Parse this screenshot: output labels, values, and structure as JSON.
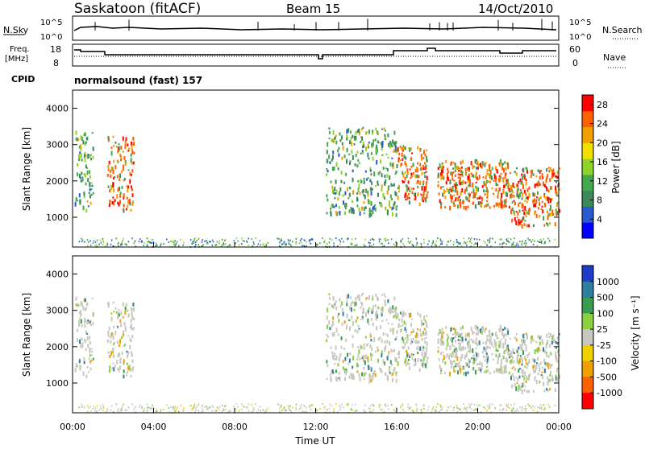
{
  "header": {
    "station": "Saskatoon (fitACF)",
    "beam": "Beam 15",
    "date": "14/Oct/2010"
  },
  "strip_labels": {
    "nsky": "N.Sky",
    "nsearch": "N.Search",
    "freq": "Freq.",
    "freq_unit": "[MHz]",
    "nave": "Nave",
    "cpid": "CPID",
    "cpid_value": "normalsound (fast) 157",
    "nsky_ticks": [
      "10^5",
      "10^0"
    ],
    "nsky_right_ticks": [
      "10^5",
      "10^0"
    ],
    "freq_ticks": [
      "18",
      "8"
    ],
    "nave_ticks": [
      "60",
      "0"
    ]
  },
  "colors": {
    "power_scale": [
      "#0000ff",
      "#2a5ad2",
      "#3b8a5a",
      "#44a84c",
      "#8fd42a",
      "#f0e000",
      "#f0a000",
      "#ff6000",
      "#ff0000"
    ],
    "velocity_scale": [
      "#1e3cc8",
      "#2e7ea0",
      "#3a9a50",
      "#8ad040",
      "#c8c8c0",
      "#f0d000",
      "#f0a000",
      "#ff6000",
      "#ff0000"
    ],
    "ground_scatter": "#c8c8c0"
  },
  "chart_data": [
    {
      "type": "heatmap",
      "title": "",
      "xlabel": "",
      "ylabel": "Slant Range [km]",
      "xlim": [
        "00:00",
        "00:00"
      ],
      "ylim": [
        180,
        4500
      ],
      "yticks": [
        1000,
        2000,
        3000,
        4000
      ],
      "colorbar": {
        "label": "Power [dB]",
        "ticks": [
          4,
          8,
          12,
          16,
          20,
          24,
          28
        ],
        "range": [
          0,
          30
        ]
      },
      "regions": [
        {
          "t_start": 0.1,
          "t_end": 1.0,
          "r_min": 1200,
          "r_max": 3400,
          "level": "medium"
        },
        {
          "t_start": 1.7,
          "t_end": 3.0,
          "r_min": 1200,
          "r_max": 3300,
          "level": "high"
        },
        {
          "t_start": 12.5,
          "t_end": 16.0,
          "r_min": 1100,
          "r_max": 3500,
          "level": "medium"
        },
        {
          "t_start": 16.0,
          "t_end": 17.5,
          "r_min": 1400,
          "r_max": 3000,
          "level": "high"
        },
        {
          "t_start": 18.0,
          "t_end": 21.5,
          "r_min": 1300,
          "r_max": 2600,
          "level": "high"
        },
        {
          "t_start": 21.5,
          "t_end": 24.0,
          "r_min": 800,
          "r_max": 2400,
          "level": "high"
        }
      ]
    },
    {
      "type": "heatmap",
      "title": "",
      "xlabel": "Time UT",
      "ylabel": "Slant Range [km]",
      "xlim": [
        "00:00",
        "00:00"
      ],
      "ylim": [
        180,
        4500
      ],
      "xticks": [
        "00:00",
        "04:00",
        "08:00",
        "12:00",
        "16:00",
        "20:00",
        "00:00"
      ],
      "yticks": [
        1000,
        2000,
        3000,
        4000
      ],
      "colorbar": {
        "label": "Velocity [m s⁻¹]",
        "ticks": [
          1000,
          500,
          100,
          25,
          -25,
          -100,
          -500,
          -1000
        ]
      }
    }
  ]
}
